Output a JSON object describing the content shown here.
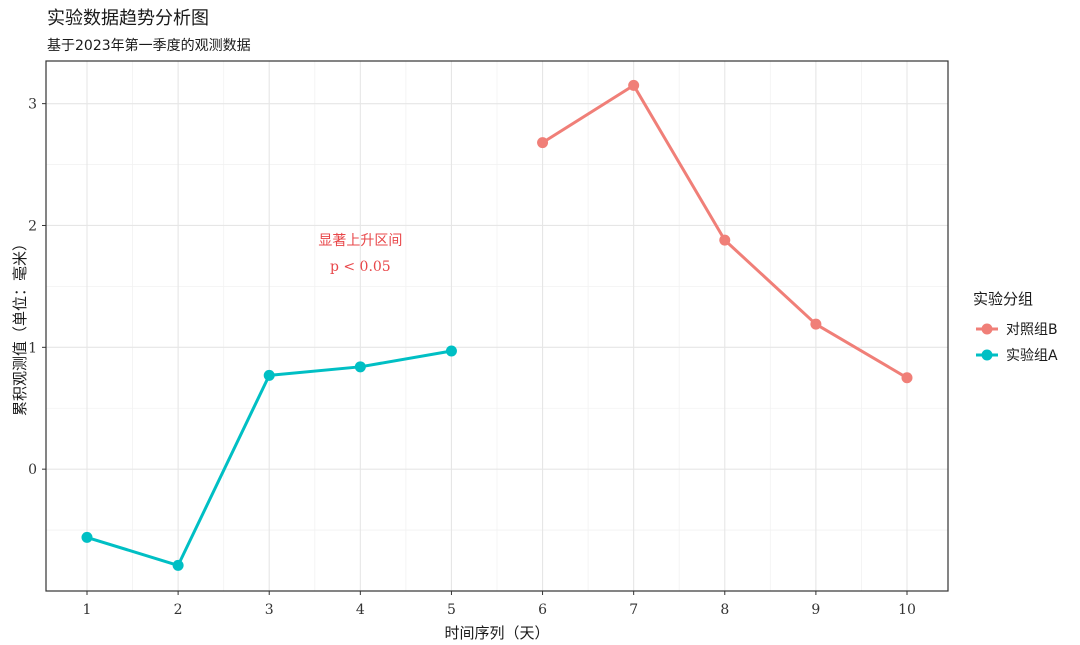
{
  "chart_data": {
    "type": "line",
    "title": "实验数据趋势分析图",
    "subtitle": "基于2023年第一季度的观测数据",
    "xlabel": "时间序列（天）",
    "ylabel": "累积观测值（单位：毫米）",
    "xlim": [
      0.55,
      10.45
    ],
    "ylim": [
      -1.0,
      3.35
    ],
    "x_ticks": [
      1,
      2,
      3,
      4,
      5,
      6,
      7,
      8,
      9,
      10
    ],
    "y_ticks": [
      0,
      1,
      2,
      3
    ],
    "grid": true,
    "legend_title": "实验分组",
    "legend_position": "right",
    "series": [
      {
        "name": "对照组B",
        "color": "#f07f78",
        "x": [
          6,
          7,
          8,
          9,
          10
        ],
        "y": [
          2.68,
          3.15,
          1.88,
          1.19,
          0.75
        ]
      },
      {
        "name": "实验组A",
        "color": "#00bfc4",
        "x": [
          1,
          2,
          3,
          4,
          5
        ],
        "y": [
          -0.56,
          -0.79,
          0.77,
          0.84,
          0.97
        ]
      }
    ],
    "annotation": {
      "lines": [
        "显著上升区间",
        "p < 0.05"
      ],
      "x": 4,
      "y": 1.85,
      "color": "#e8474a"
    }
  }
}
